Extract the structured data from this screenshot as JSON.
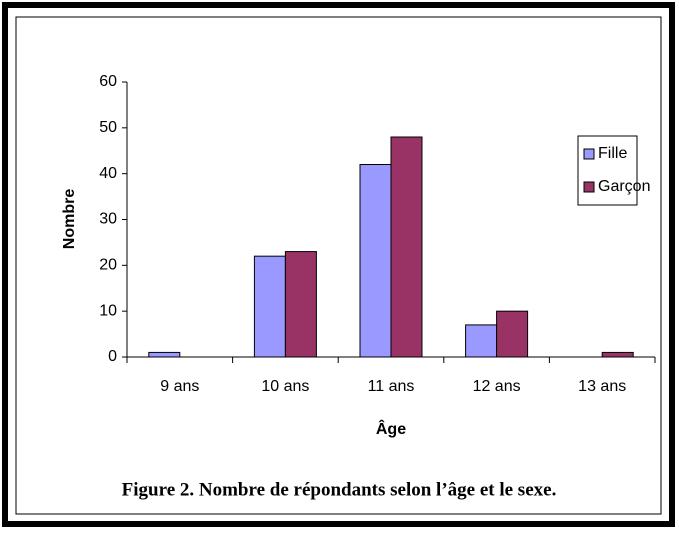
{
  "chart_data": {
    "type": "bar",
    "caption": "Figure 2. Nombre de répondants selon l’âge et le sexe.",
    "x_label": "Âge",
    "y_label": "Nombre",
    "categories": [
      "9 ans",
      "10 ans",
      "11 ans",
      "12 ans",
      "13 ans"
    ],
    "series": [
      {
        "name": "Fille",
        "color": "#9999ff",
        "values": [
          1,
          22,
          42,
          7,
          0
        ]
      },
      {
        "name": "Garçon",
        "color": "#993366",
        "values": [
          0,
          23,
          48,
          10,
          1
        ]
      }
    ],
    "ylim": [
      0,
      60
    ],
    "yticks": [
      0,
      10,
      20,
      30,
      40,
      50,
      60
    ],
    "grid": false,
    "legend": "upper right"
  }
}
